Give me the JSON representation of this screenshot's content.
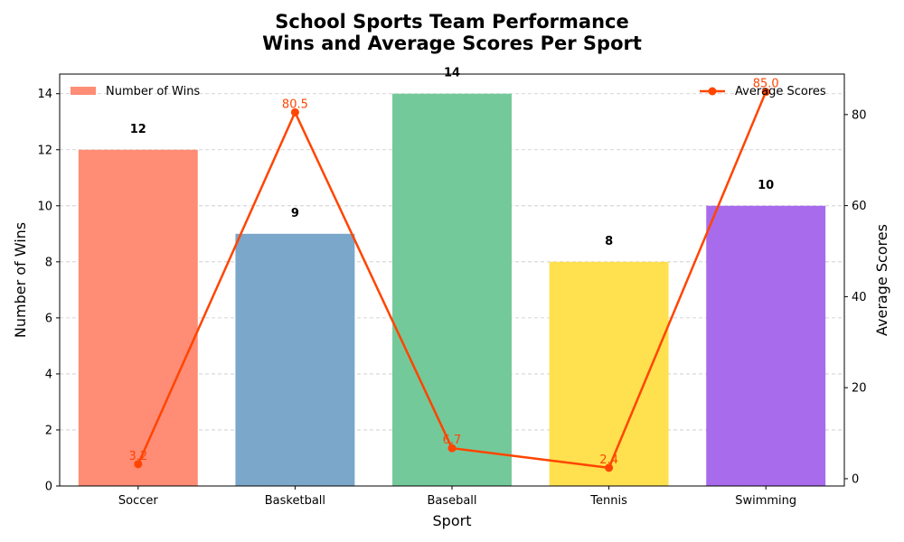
{
  "chart_data": {
    "type": "bar",
    "title": "School Sports Team Performance",
    "subtitle": "Wins and Average Scores Per Sport",
    "xlabel": "Sport",
    "ylabel": "Number of Wins",
    "y2label": "Average Scores",
    "categories": [
      "Soccer",
      "Basketball",
      "Baseball",
      "Tennis",
      "Swimming"
    ],
    "bar_colors": [
      "#FF8C75",
      "#7BA7CB",
      "#74C99A",
      "#FFE04E",
      "#A86BEB"
    ],
    "line_color": "#FF4500",
    "ylim": [
      0,
      14.7
    ],
    "y2lim": [
      -1.6,
      88.9
    ],
    "y_ticks": [
      0,
      2,
      4,
      6,
      8,
      10,
      12,
      14
    ],
    "y2_ticks": [
      0,
      20,
      40,
      60,
      80
    ],
    "grid": true,
    "series": [
      {
        "name": "Number of Wins",
        "kind": "bar",
        "axis": "left",
        "values": [
          12,
          9,
          14,
          8,
          10
        ],
        "labels": [
          "12",
          "9",
          "14",
          "8",
          "10"
        ]
      },
      {
        "name": "Average Scores",
        "kind": "line",
        "axis": "right",
        "values": [
          3.2,
          80.5,
          6.7,
          2.4,
          85.0
        ],
        "labels": [
          "3.2",
          "80.5",
          "6.7",
          "2.4",
          "85.0"
        ]
      }
    ],
    "legend": [
      {
        "name": "Number of Wins",
        "placement": "top-left"
      },
      {
        "name": "Average Scores",
        "placement": "top-right"
      }
    ]
  }
}
